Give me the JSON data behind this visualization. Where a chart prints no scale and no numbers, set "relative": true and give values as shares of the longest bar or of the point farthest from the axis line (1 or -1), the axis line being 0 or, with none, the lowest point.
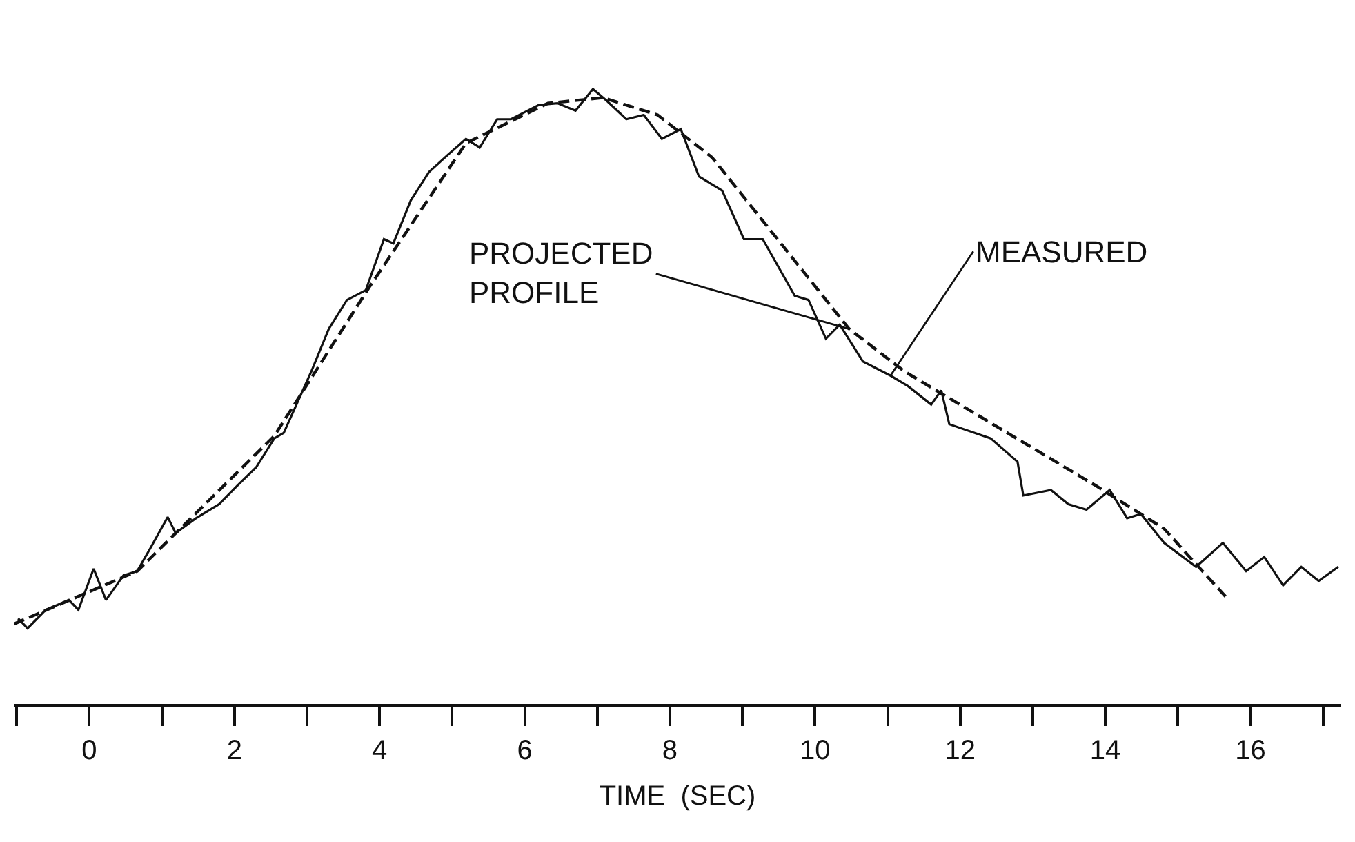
{
  "chart_data": {
    "type": "line",
    "relative": true,
    "xlabel": "TIME  (SEC)",
    "xlim": [
      -1.04,
      17.25
    ],
    "xticks": [
      {
        "value": -1,
        "label": null
      },
      0,
      {
        "value": 1,
        "label": null
      },
      2,
      {
        "value": 3,
        "label": null
      },
      4,
      {
        "value": 5,
        "label": null
      },
      6,
      {
        "value": 7,
        "label": null
      },
      8,
      {
        "value": 9,
        "label": null
      },
      10,
      {
        "value": 11,
        "label": null
      },
      12,
      {
        "value": 13,
        "label": null
      },
      14,
      {
        "value": 15,
        "label": null
      },
      16,
      {
        "value": 17,
        "label": null
      }
    ],
    "series": [
      {
        "color": "#111111",
        "line_style": "solid",
        "x": [
          -0.98,
          -0.85,
          -0.6,
          -0.28,
          -0.15,
          0.06,
          0.23,
          0.47,
          0.66,
          0.85,
          1.08,
          1.19,
          1.47,
          1.79,
          2.04,
          2.3,
          2.55,
          2.68,
          3.06,
          3.3,
          3.55,
          3.81,
          4.06,
          4.19,
          4.43,
          4.68,
          4.94,
          5.19,
          5.38,
          5.62,
          5.81,
          6.19,
          6.45,
          6.7,
          6.94,
          7.13,
          7.4,
          7.64,
          7.89,
          8.15,
          8.4,
          8.72,
          9.02,
          9.28,
          9.72,
          9.91,
          10.15,
          10.34,
          10.66,
          11.04,
          11.28,
          11.6,
          11.74,
          11.85,
          12.42,
          12.79,
          12.87,
          13.25,
          13.49,
          13.74,
          14.06,
          14.3,
          14.49,
          14.81,
          15.25,
          15.62,
          15.94,
          16.19,
          16.45,
          16.7,
          16.94,
          17.21
        ],
        "values": [
          0.139,
          0.123,
          0.153,
          0.169,
          0.153,
          0.22,
          0.169,
          0.209,
          0.216,
          0.255,
          0.304,
          0.278,
          0.302,
          0.325,
          0.355,
          0.385,
          0.432,
          0.441,
          0.541,
          0.61,
          0.657,
          0.673,
          0.756,
          0.749,
          0.819,
          0.865,
          0.893,
          0.919,
          0.905,
          0.951,
          0.951,
          0.974,
          0.977,
          0.965,
          1.0,
          0.981,
          0.951,
          0.958,
          0.919,
          0.935,
          0.858,
          0.835,
          0.756,
          0.756,
          0.664,
          0.657,
          0.594,
          0.617,
          0.557,
          0.534,
          0.517,
          0.487,
          0.51,
          0.455,
          0.432,
          0.394,
          0.339,
          0.348,
          0.325,
          0.316,
          0.348,
          0.302,
          0.309,
          0.262,
          0.223,
          0.262,
          0.216,
          0.239,
          0.193,
          0.223,
          0.2,
          0.223
        ]
      },
      {
        "color": "#111111",
        "line_style": "dashed",
        "x": [
          -1.04,
          0.66,
          2.55,
          3.87,
          5.19,
          6.32,
          7.08,
          7.83,
          8.58,
          9.53,
          10.47,
          11.23,
          12.55,
          13.87,
          14.81,
          15.7
        ],
        "values": [
          0.13,
          0.216,
          0.436,
          0.68,
          0.912,
          0.977,
          0.986,
          0.958,
          0.889,
          0.749,
          0.61,
          0.541,
          0.448,
          0.355,
          0.285,
          0.169
        ]
      }
    ],
    "annotations": [
      {
        "text": "MEASURED",
        "x": 11.04,
        "y": 0.534
      },
      {
        "text": "PROJECTED\nPROFILE",
        "x": 10.47,
        "y": 0.61
      }
    ],
    "tick_labels": "x"
  }
}
